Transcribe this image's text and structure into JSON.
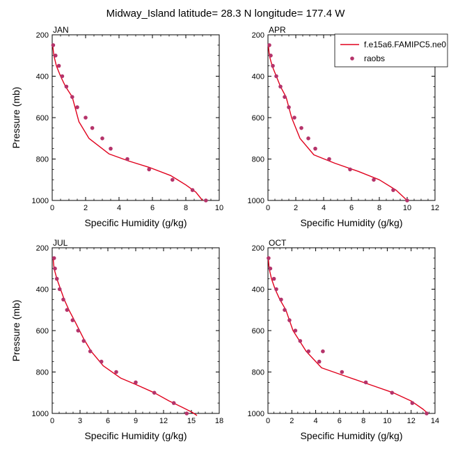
{
  "figure": {
    "title": "Midway_Island  latitude= 28.3 N longitude= 177.4 W",
    "legend": {
      "model_label": "f.e15a6.FAMIPC5.ne0",
      "obs_label": "raobs",
      "model_color": "#e0001c",
      "obs_color": "#b5336a"
    }
  },
  "chart_data": [
    {
      "type": "line",
      "panel_label": "JAN",
      "xlabel": "Specific Humidity (g/kg)",
      "ylabel": "Pressure (mb)",
      "xlim": [
        0,
        10
      ],
      "ylim": [
        1000,
        200
      ],
      "y_inverted": true,
      "xticks": [
        0,
        2,
        4,
        6,
        8,
        10
      ],
      "yticks": [
        200,
        400,
        600,
        800,
        1000
      ],
      "series": [
        {
          "name": "f.e15a6.FAMIPC5.ne0",
          "kind": "line",
          "x": [
            0.03,
            0.1,
            0.25,
            0.5,
            0.8,
            1.2,
            1.6,
            2.2,
            3.4,
            4.6,
            5.8,
            7.1,
            8.0,
            8.6,
            9.0
          ],
          "y": [
            250,
            300,
            350,
            400,
            450,
            500,
            620,
            700,
            775,
            810,
            840,
            880,
            925,
            960,
            1000
          ]
        },
        {
          "name": "raobs",
          "kind": "marker",
          "x": [
            0.06,
            0.2,
            0.4,
            0.6,
            0.85,
            1.2,
            1.5,
            2.0,
            2.4,
            3.0,
            3.5,
            4.5,
            5.8,
            7.2,
            8.4,
            9.2
          ],
          "y": [
            250,
            300,
            350,
            400,
            450,
            500,
            550,
            600,
            650,
            700,
            750,
            800,
            850,
            900,
            950,
            1000
          ]
        }
      ]
    },
    {
      "type": "line",
      "panel_label": "APR",
      "xlabel": "Specific Humidity (g/kg)",
      "ylabel": "",
      "xlim": [
        0,
        12
      ],
      "ylim": [
        1000,
        200
      ],
      "y_inverted": true,
      "xticks": [
        0,
        2,
        4,
        6,
        8,
        10,
        12
      ],
      "yticks": [
        200,
        400,
        600,
        800,
        1000
      ],
      "series": [
        {
          "name": "f.e15a6.FAMIPC5.ne0",
          "kind": "line",
          "x": [
            0.03,
            0.1,
            0.3,
            0.6,
            0.9,
            1.3,
            1.7,
            2.3,
            3.3,
            4.8,
            6.5,
            8.0,
            9.2,
            10.0
          ],
          "y": [
            250,
            300,
            350,
            400,
            450,
            500,
            600,
            700,
            780,
            820,
            860,
            900,
            950,
            1000
          ]
        },
        {
          "name": "raobs",
          "kind": "marker",
          "x": [
            0.1,
            0.2,
            0.35,
            0.6,
            0.9,
            1.2,
            1.5,
            1.9,
            2.4,
            2.9,
            3.4,
            4.4,
            5.9,
            7.6,
            9.0,
            10.0
          ],
          "y": [
            250,
            300,
            350,
            400,
            450,
            500,
            550,
            600,
            650,
            700,
            750,
            800,
            850,
            900,
            950,
            1000
          ]
        }
      ]
    },
    {
      "type": "line",
      "panel_label": "JUL",
      "xlabel": "Specific Humidity (g/kg)",
      "ylabel": "Pressure (mb)",
      "xlim": [
        0,
        18
      ],
      "ylim": [
        1000,
        200
      ],
      "y_inverted": true,
      "xticks": [
        0,
        3,
        6,
        9,
        12,
        15,
        18
      ],
      "yticks": [
        200,
        400,
        600,
        800,
        1000
      ],
      "series": [
        {
          "name": "f.e15a6.FAMIPC5.ne0",
          "kind": "line",
          "x": [
            0.1,
            0.2,
            0.5,
            0.9,
            1.3,
            1.8,
            2.5,
            3.4,
            4.2,
            5.5,
            7.4,
            9.0,
            11.0,
            12.6,
            14.0,
            15.1,
            15.6
          ],
          "y": [
            250,
            300,
            350,
            400,
            450,
            500,
            560,
            640,
            700,
            770,
            830,
            860,
            900,
            940,
            970,
            995,
            1010
          ]
        },
        {
          "name": "raobs",
          "kind": "marker",
          "x": [
            0.2,
            0.3,
            0.5,
            0.8,
            1.2,
            1.6,
            2.2,
            2.8,
            3.4,
            4.1,
            5.3,
            6.9,
            9.0,
            11.0,
            13.1,
            14.5
          ],
          "y": [
            250,
            300,
            350,
            400,
            450,
            500,
            550,
            600,
            650,
            700,
            750,
            800,
            850,
            900,
            950,
            1000
          ]
        }
      ]
    },
    {
      "type": "line",
      "panel_label": "OCT",
      "xlabel": "Specific Humidity (g/kg)",
      "ylabel": "",
      "xlim": [
        0,
        14
      ],
      "ylim": [
        1000,
        200
      ],
      "y_inverted": true,
      "xticks": [
        0,
        2,
        4,
        6,
        8,
        10,
        12,
        14
      ],
      "yticks": [
        200,
        400,
        600,
        800,
        1000
      ],
      "series": [
        {
          "name": "f.e15a6.FAMIPC5.ne0",
          "kind": "line",
          "x": [
            0.03,
            0.1,
            0.3,
            0.6,
            1.0,
            1.5,
            2.1,
            3.2,
            4.5,
            6.5,
            8.5,
            10.5,
            12.0,
            13.0,
            13.4
          ],
          "y": [
            250,
            300,
            350,
            400,
            450,
            500,
            600,
            700,
            780,
            820,
            860,
            900,
            940,
            980,
            1000
          ]
        },
        {
          "name": "raobs",
          "kind": "marker",
          "x": [
            0.05,
            0.2,
            0.5,
            0.7,
            1.1,
            1.4,
            1.8,
            2.3,
            2.7,
            3.4,
            4.3,
            4.6,
            6.2,
            8.2,
            10.4,
            12.1,
            13.3
          ],
          "y": [
            250,
            300,
            350,
            400,
            450,
            500,
            550,
            600,
            650,
            700,
            750,
            700,
            800,
            850,
            900,
            950,
            1000
          ]
        }
      ]
    }
  ]
}
